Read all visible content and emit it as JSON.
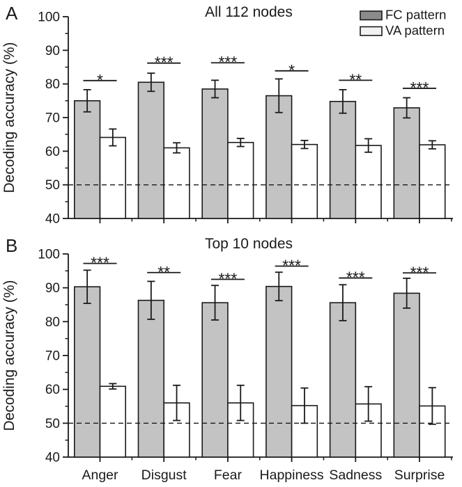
{
  "figure": {
    "background": "#ffffff",
    "colors": {
      "fc_bar_fill": "#c3c3c3",
      "va_bar_fill": "#ffffff",
      "legend_fc_fill": "#8b8b8b",
      "legend_va_fill": "#f2f2f2",
      "stroke": "#1a1a1a",
      "text": "#1a1a1a"
    },
    "legend": {
      "items": [
        {
          "key": "fc",
          "label": "FC pattern"
        },
        {
          "key": "va",
          "label": "VA pattern"
        }
      ]
    }
  },
  "chart_data": [
    {
      "type": "bar",
      "panel_letter": "A",
      "title": "All 112 nodes",
      "ylabel": "Decoding accuracy (%)",
      "ylim": [
        40,
        100
      ],
      "yticks_major": [
        40,
        50,
        60,
        70,
        80,
        90,
        100
      ],
      "yticks_minor": [
        45,
        55,
        65,
        75,
        85,
        95
      ],
      "chance_line": 50,
      "grid": "off",
      "legend_position": "top-right",
      "categories": [
        "Anger",
        "Disgust",
        "Fear",
        "Happiness",
        "Sadness",
        "Surprise"
      ],
      "series": [
        {
          "name": "FC pattern",
          "values": [
            75.0,
            80.5,
            78.5,
            76.5,
            74.8,
            72.9
          ],
          "errors": [
            3.3,
            2.7,
            2.6,
            5.0,
            3.5,
            3.0
          ]
        },
        {
          "name": "VA pattern",
          "values": [
            64.1,
            61.0,
            62.6,
            62.0,
            61.7,
            61.9
          ],
          "errors": [
            2.5,
            1.5,
            1.2,
            1.2,
            2.0,
            1.2
          ]
        }
      ],
      "significance": [
        "*",
        "***",
        "***",
        "*",
        "**",
        "***"
      ],
      "sig_line_y": [
        81.0,
        86.2,
        86.3,
        83.9,
        81.1,
        78.7
      ],
      "show_x_labels": false
    },
    {
      "type": "bar",
      "panel_letter": "B",
      "title": "Top 10 nodes",
      "ylabel": "Decoding accuracy (%)",
      "ylim": [
        40,
        100
      ],
      "yticks_major": [
        40,
        50,
        60,
        70,
        80,
        90,
        100
      ],
      "yticks_minor": [
        45,
        55,
        65,
        75,
        85,
        95
      ],
      "chance_line": 50,
      "grid": "off",
      "legend_position": "none",
      "categories": [
        "Anger",
        "Disgust",
        "Fear",
        "Happiness",
        "Sadness",
        "Surprise"
      ],
      "series": [
        {
          "name": "FC pattern",
          "values": [
            90.3,
            86.3,
            85.6,
            90.4,
            85.6,
            88.4
          ],
          "errors": [
            4.9,
            5.6,
            5.1,
            4.2,
            5.3,
            4.4
          ]
        },
        {
          "name": "VA pattern",
          "values": [
            60.9,
            56.0,
            56.0,
            55.2,
            55.7,
            55.1
          ],
          "errors": [
            0.8,
            5.2,
            5.2,
            5.2,
            5.1,
            5.4
          ]
        }
      ],
      "significance": [
        "***",
        "**",
        "***",
        "***",
        "***",
        "***"
      ],
      "sig_line_y": [
        97.2,
        94.5,
        92.5,
        96.4,
        92.9,
        94.4
      ],
      "show_x_labels": true
    }
  ]
}
